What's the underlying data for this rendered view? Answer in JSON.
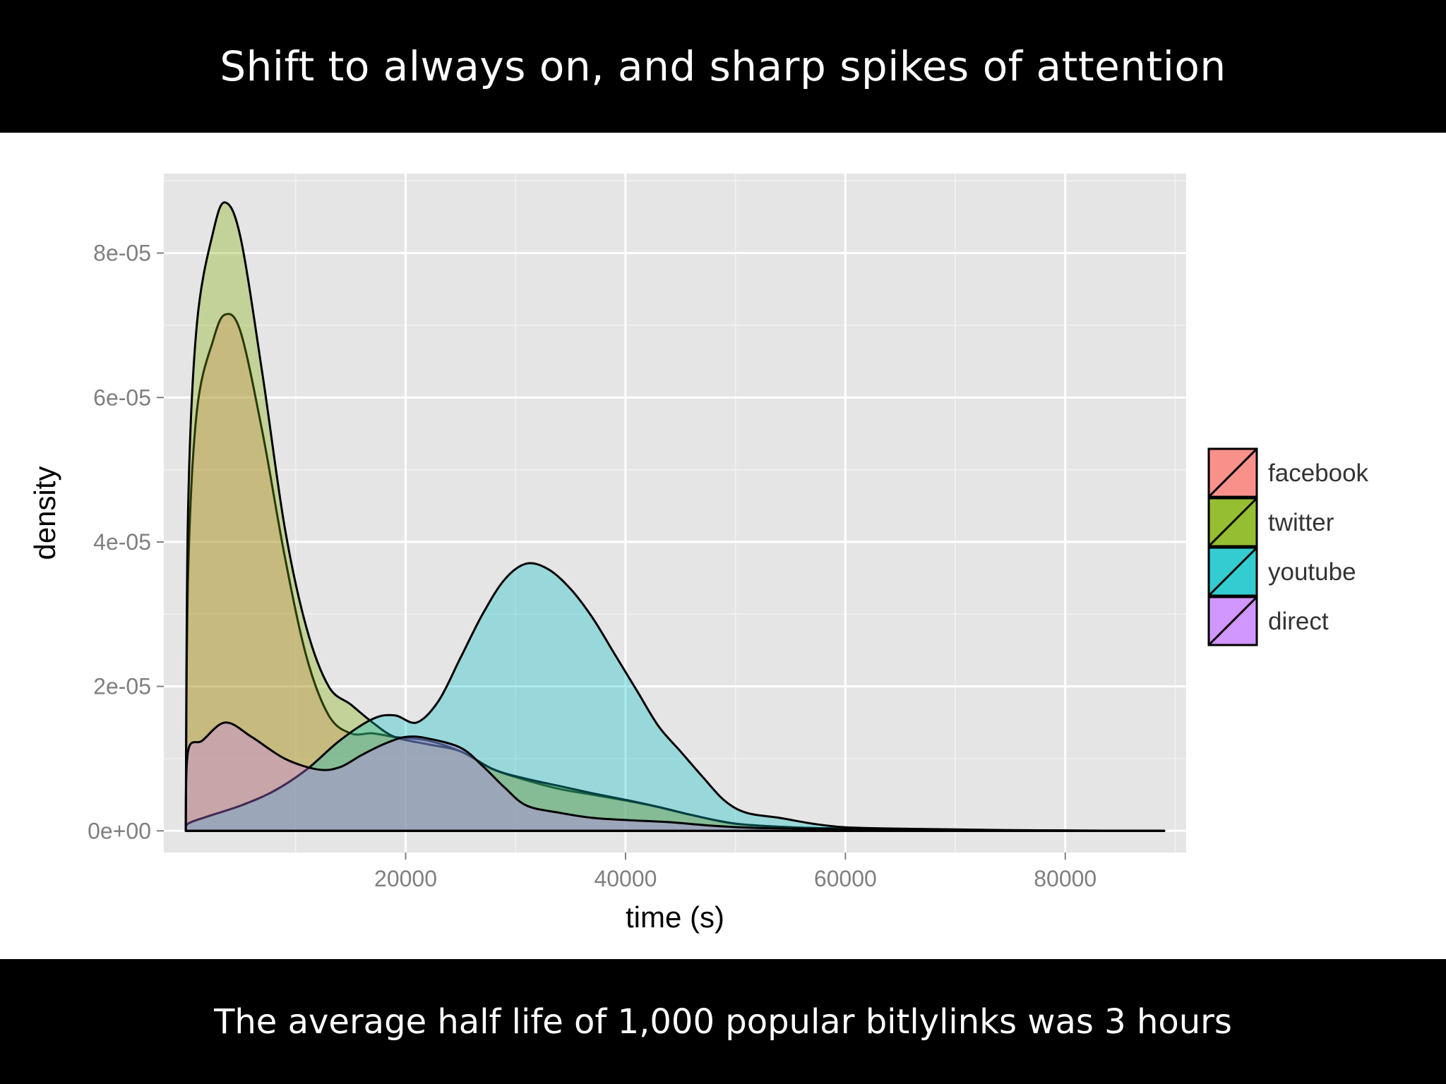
{
  "slide": {
    "title": "Shift to always on, and sharp spikes of attention",
    "caption": "The average half life of 1,000 popular bitlylinks was 3 hours"
  },
  "chart_data": {
    "type": "area",
    "title": "",
    "xlabel": "time (s)",
    "ylabel": "density",
    "xlim": [
      -2000,
      91000
    ],
    "ylim": [
      -3e-06,
      9.1e-05
    ],
    "x_ticks": [
      20000,
      40000,
      60000,
      80000
    ],
    "x_tick_labels": [
      "20000",
      "40000",
      "60000",
      "80000"
    ],
    "y_ticks": [
      0,
      2e-05,
      4e-05,
      6e-05,
      8e-05
    ],
    "y_tick_labels": [
      "0e+00",
      "2e-05",
      "4e-05",
      "6e-05",
      "8e-05"
    ],
    "grid": true,
    "legend_position": "right",
    "series": [
      {
        "name": "facebook",
        "color": "#F8766D",
        "points": [
          [
            0,
            0
          ],
          [
            200,
            3.5e-05
          ],
          [
            1000,
            5.8e-05
          ],
          [
            2500,
            6.8e-05
          ],
          [
            3600,
            7.15e-05
          ],
          [
            5000,
            6.9e-05
          ],
          [
            7000,
            5.5e-05
          ],
          [
            9000,
            3.8e-05
          ],
          [
            11000,
            2.4e-05
          ],
          [
            13000,
            1.6e-05
          ],
          [
            15000,
            1.35e-05
          ],
          [
            17000,
            1.35e-05
          ],
          [
            19000,
            1.3e-05
          ],
          [
            22000,
            1.25e-05
          ],
          [
            25000,
            1.1e-05
          ],
          [
            28000,
            8.5e-06
          ],
          [
            31000,
            7e-06
          ],
          [
            34000,
            5.8e-06
          ],
          [
            37000,
            5e-06
          ],
          [
            40000,
            4.2e-06
          ],
          [
            43000,
            3.3e-06
          ],
          [
            46000,
            2.2e-06
          ],
          [
            50000,
            1e-06
          ],
          [
            55000,
            5e-07
          ],
          [
            60000,
            3e-07
          ],
          [
            70000,
            1e-07
          ],
          [
            89000,
            0
          ]
        ]
      },
      {
        "name": "twitter",
        "color": "#7CAE00",
        "points": [
          [
            0,
            0
          ],
          [
            200,
            4.4e-05
          ],
          [
            1000,
            7e-05
          ],
          [
            2500,
            8.3e-05
          ],
          [
            3600,
            8.7e-05
          ],
          [
            5000,
            8.2e-05
          ],
          [
            7000,
            6.3e-05
          ],
          [
            9000,
            4.2e-05
          ],
          [
            11000,
            2.8e-05
          ],
          [
            13000,
            2e-05
          ],
          [
            15000,
            1.75e-05
          ],
          [
            17000,
            1.5e-05
          ],
          [
            19000,
            1.3e-05
          ],
          [
            22000,
            1.2e-05
          ],
          [
            25000,
            1.1e-05
          ],
          [
            28000,
            8.5e-06
          ],
          [
            31000,
            7.2e-06
          ],
          [
            34000,
            6.2e-06
          ],
          [
            37000,
            5.2e-06
          ],
          [
            40000,
            4.3e-06
          ],
          [
            43000,
            3.3e-06
          ],
          [
            46000,
            2.2e-06
          ],
          [
            50000,
            1e-06
          ],
          [
            55000,
            5e-07
          ],
          [
            60000,
            3e-07
          ],
          [
            70000,
            1e-07
          ],
          [
            89000,
            0
          ]
        ]
      },
      {
        "name": "youtube",
        "color": "#00BFC4",
        "points": [
          [
            0,
            0
          ],
          [
            200,
            1e-06
          ],
          [
            2000,
            2e-06
          ],
          [
            5000,
            3.5e-06
          ],
          [
            8000,
            5.5e-06
          ],
          [
            11000,
            8.5e-06
          ],
          [
            14000,
            1.25e-05
          ],
          [
            17000,
            1.55e-05
          ],
          [
            19000,
            1.6e-05
          ],
          [
            21000,
            1.5e-05
          ],
          [
            23000,
            1.8e-05
          ],
          [
            25000,
            2.4e-05
          ],
          [
            27000,
            3e-05
          ],
          [
            29000,
            3.48e-05
          ],
          [
            31000,
            3.7e-05
          ],
          [
            33000,
            3.62e-05
          ],
          [
            35000,
            3.35e-05
          ],
          [
            37000,
            2.95e-05
          ],
          [
            39000,
            2.45e-05
          ],
          [
            41000,
            1.95e-05
          ],
          [
            43000,
            1.45e-05
          ],
          [
            45000,
            1.1e-05
          ],
          [
            47000,
            7.5e-06
          ],
          [
            49000,
            4.2e-06
          ],
          [
            51000,
            2.5e-06
          ],
          [
            54000,
            1.8e-06
          ],
          [
            57000,
            1e-06
          ],
          [
            60000,
            5e-07
          ],
          [
            65000,
            3e-07
          ],
          [
            75000,
            1e-07
          ],
          [
            89000,
            0
          ]
        ]
      },
      {
        "name": "direct",
        "color": "#C77CFF",
        "points": [
          [
            0,
            0
          ],
          [
            200,
            1.1e-05
          ],
          [
            1500,
            1.25e-05
          ],
          [
            3600,
            1.5e-05
          ],
          [
            6000,
            1.3e-05
          ],
          [
            9000,
            1e-05
          ],
          [
            12000,
            8.5e-06
          ],
          [
            14000,
            8.8e-06
          ],
          [
            16000,
            1.05e-05
          ],
          [
            18000,
            1.2e-05
          ],
          [
            20000,
            1.3e-05
          ],
          [
            22000,
            1.28e-05
          ],
          [
            25000,
            1.15e-05
          ],
          [
            27000,
            9e-06
          ],
          [
            29000,
            6e-06
          ],
          [
            31000,
            3.5e-06
          ],
          [
            34000,
            2.5e-06
          ],
          [
            37000,
            1.8e-06
          ],
          [
            40000,
            1.5e-06
          ],
          [
            44000,
            1.2e-06
          ],
          [
            48000,
            7e-07
          ],
          [
            52000,
            4e-07
          ],
          [
            60000,
            2e-07
          ],
          [
            70000,
            1e-07
          ],
          [
            89000,
            0
          ]
        ]
      }
    ]
  }
}
